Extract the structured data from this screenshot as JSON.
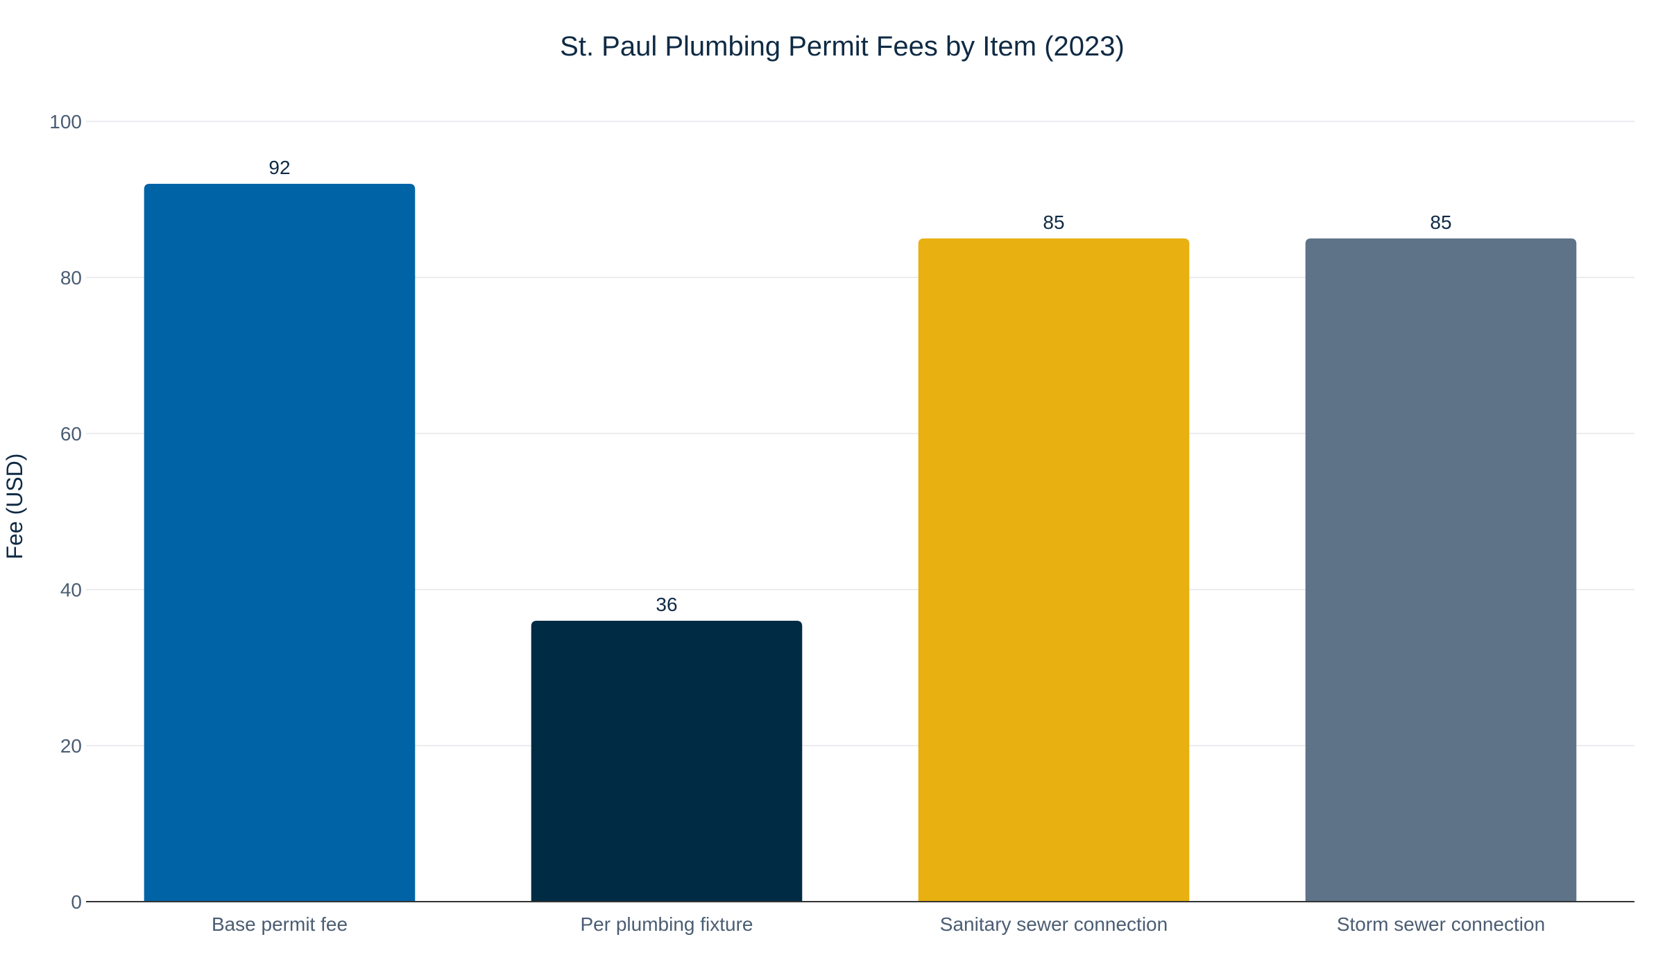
{
  "chart_data": {
    "type": "bar",
    "title": "St. Paul Plumbing Permit Fees by Item (2023)",
    "xlabel": "",
    "ylabel": "Fee (USD)",
    "ylim": [
      0,
      100
    ],
    "yticks": [
      0,
      20,
      40,
      60,
      80,
      100
    ],
    "grid": true,
    "categories": [
      "Base permit fee",
      "Per plumbing fixture",
      "Sanitary sewer connection",
      "Storm sewer connection"
    ],
    "values": [
      92,
      36,
      85,
      85
    ],
    "data_labels": [
      "92",
      "36",
      "85",
      "85"
    ],
    "colors": [
      "#0063a6",
      "#002b45",
      "#e8b010",
      "#5e7388"
    ]
  }
}
